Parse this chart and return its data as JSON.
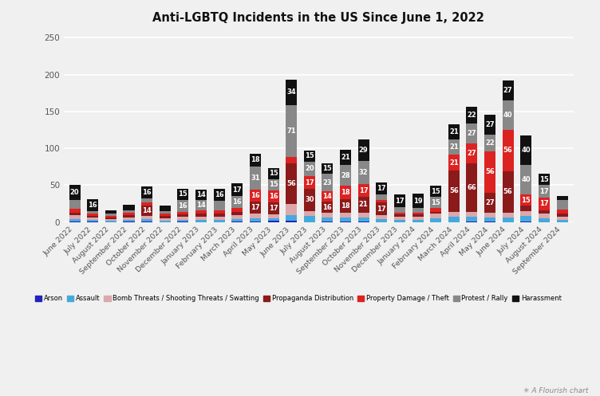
{
  "title": "Anti-LGBTQ Incidents in the US Since June 1, 2022",
  "categories": [
    "June 2022",
    "July 2022",
    "August 2022",
    "September 2022",
    "October 2022",
    "November 2022",
    "December 2022",
    "January 2023",
    "February 2023",
    "March 2023",
    "April 2023",
    "May 2023",
    "June 2023",
    "July 2023",
    "August 2023",
    "September 2023",
    "October 2023",
    "November 2023",
    "December 2023",
    "January 2024",
    "February 2024",
    "March 2024",
    "April 2024",
    "May 2024",
    "June 2024",
    "July 2024",
    "August 2024",
    "September 2024"
  ],
  "series": {
    "Arson": [
      1,
      1,
      0,
      1,
      1,
      0,
      1,
      0,
      0,
      1,
      1,
      2,
      2,
      0,
      1,
      1,
      1,
      0,
      0,
      0,
      0,
      0,
      1,
      1,
      0,
      1,
      0,
      0
    ],
    "Assault": [
      3,
      2,
      2,
      2,
      3,
      2,
      2,
      3,
      3,
      3,
      4,
      3,
      7,
      8,
      5,
      5,
      5,
      4,
      3,
      3,
      5,
      7,
      6,
      5,
      6,
      7,
      5,
      3
    ],
    "Bomb Threats / Shooting Threats / Swatting": [
      5,
      3,
      2,
      3,
      4,
      3,
      4,
      4,
      4,
      5,
      6,
      5,
      15,
      7,
      6,
      7,
      7,
      5,
      4,
      4,
      6,
      7,
      7,
      7,
      7,
      7,
      6,
      4
    ],
    "Propaganda Distribution": [
      4,
      2,
      2,
      3,
      14,
      3,
      3,
      4,
      4,
      5,
      17,
      17,
      56,
      30,
      16,
      18,
      21,
      17,
      3,
      3,
      3,
      56,
      66,
      27,
      56,
      7,
      5,
      4
    ],
    "Property Damage / Theft": [
      5,
      3,
      2,
      3,
      5,
      3,
      4,
      5,
      5,
      5,
      16,
      16,
      8,
      17,
      14,
      18,
      17,
      4,
      3,
      3,
      5,
      21,
      27,
      56,
      56,
      15,
      17,
      6
    ],
    "Protest / Rally": [
      12,
      4,
      3,
      4,
      5,
      4,
      16,
      14,
      13,
      16,
      31,
      15,
      71,
      20,
      23,
      28,
      32,
      7,
      7,
      6,
      15,
      21,
      27,
      22,
      40,
      40,
      17,
      13
    ],
    "Harassment": [
      20,
      16,
      5,
      7,
      16,
      7,
      15,
      14,
      16,
      17,
      18,
      15,
      34,
      15,
      15,
      21,
      29,
      17,
      17,
      19,
      15,
      21,
      22,
      27,
      27,
      40,
      15,
      5
    ]
  },
  "colors": {
    "Arson": "#2222bb",
    "Assault": "#44aadd",
    "Bomb Threats / Shooting Threats / Swatting": "#dba8ac",
    "Propaganda Distribution": "#8b1a1a",
    "Property Damage / Theft": "#dd2222",
    "Protest / Rally": "#888888",
    "Harassment": "#111111"
  },
  "ylim": [
    0,
    260
  ],
  "yticks": [
    0,
    50,
    100,
    150,
    200,
    250
  ],
  "background_color": "#f0f0f0",
  "grid_color": "#ffffff",
  "bar_label_color": "#ffffff",
  "bar_label_fontsize": 6.0,
  "label_thresholds": {
    "Propaganda Distribution": 13,
    "Property Damage / Theft": 13,
    "Protest / Rally": 14,
    "Harassment": 13
  }
}
